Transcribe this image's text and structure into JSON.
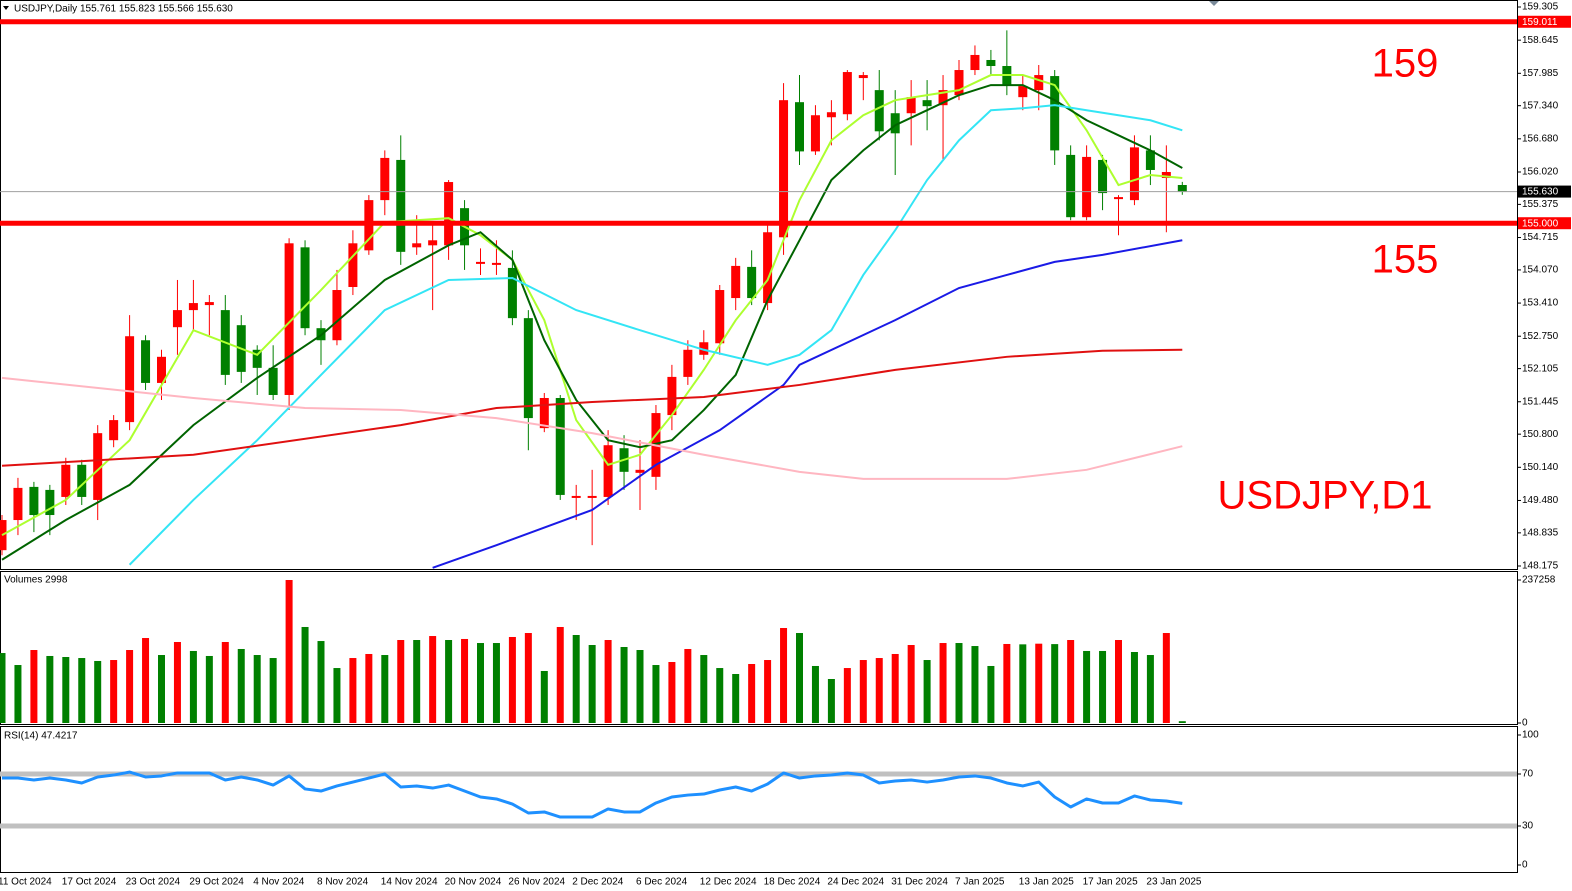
{
  "chart_data": [
    {
      "type": "candlestick",
      "title": "USDJPY,Daily 155.761 155.823 155.566 155.630",
      "categories": [
        "11 Oct 2024",
        null,
        null,
        null,
        "17 Oct 2024",
        null,
        null,
        null,
        "23 Oct 2024",
        null,
        null,
        null,
        "29 Oct 2024",
        null,
        null,
        null,
        "4 Nov 2024",
        null,
        null,
        null,
        "8 Nov 2024",
        null,
        null,
        null,
        "14 Nov 2024",
        null,
        null,
        null,
        "20 Nov 2024",
        null,
        null,
        null,
        "26 Nov 2024",
        null,
        null,
        null,
        "2 Dec 2024",
        null,
        null,
        null,
        "6 Dec 2024",
        null,
        null,
        null,
        "12 Dec 2024",
        null,
        null,
        null,
        "18 Dec 2024",
        null,
        null,
        null,
        "24 Dec 2024",
        null,
        null,
        null,
        "31 Dec 2024",
        null,
        null,
        null,
        "7 Jan 2025",
        null,
        null,
        null,
        "13 Jan 2025",
        null,
        null,
        null,
        "17 Jan 2025",
        null,
        null,
        null,
        "23 Jan 2025",
        null,
        null
      ],
      "open": [
        148.49,
        149.09,
        149.75,
        149.69,
        149.55,
        150.19,
        149.49,
        150.68,
        151.04,
        152.67,
        151.82,
        152.93,
        153.27,
        153.37,
        153.27,
        152.97,
        152.48,
        152.12,
        151.58,
        154.52,
        152.91,
        152.67,
        153.73,
        154.46,
        155.46,
        156.26,
        154.52,
        154.56,
        154.56,
        155.3,
        154.19,
        154.17,
        154.11,
        153.11,
        150.92,
        151.52,
        149.53,
        149.53,
        149.55,
        150.52,
        150.03,
        149.95,
        151.18,
        151.94,
        152.38,
        152.61,
        153.51,
        154.13,
        153.41,
        154.72,
        157.41,
        156.43,
        157.11,
        157.17,
        157.89,
        157.65,
        157.19,
        157.19,
        157.45,
        157.35,
        157.55,
        158.05,
        158.25,
        158.13,
        157.51,
        157.65,
        157.93,
        156.36,
        155.12,
        156.26,
        155.48,
        155.46,
        156.45,
        155.9,
        155.761
      ],
      "high": [
        149.19,
        149.93,
        149.85,
        149.79,
        150.33,
        150.29,
        150.98,
        151.18,
        153.17,
        152.77,
        152.48,
        153.87,
        153.87,
        153.57,
        153.57,
        153.17,
        152.57,
        152.57,
        154.7,
        154.66,
        153.07,
        154.07,
        154.86,
        155.56,
        156.45,
        156.75,
        155.16,
        154.96,
        155.86,
        155.46,
        154.5,
        154.66,
        154.46,
        153.27,
        151.62,
        151.58,
        149.79,
        150.09,
        150.88,
        150.78,
        150.68,
        151.38,
        152.18,
        152.67,
        152.87,
        153.77,
        154.31,
        154.46,
        154.96,
        157.79,
        157.95,
        157.35,
        157.45,
        158.05,
        158.01,
        158.05,
        157.65,
        157.85,
        157.85,
        157.95,
        158.25,
        158.54,
        158.45,
        158.84,
        157.95,
        158.15,
        158.05,
        156.55,
        156.55,
        156.36,
        155.56,
        156.75,
        156.75,
        156.55,
        155.823
      ],
      "low": [
        148.39,
        148.79,
        148.85,
        148.79,
        149.39,
        149.39,
        149.09,
        150.54,
        150.88,
        151.68,
        151.48,
        152.38,
        152.87,
        152.77,
        151.78,
        151.82,
        151.58,
        151.48,
        151.28,
        152.77,
        152.18,
        152.57,
        153.57,
        154.37,
        155.16,
        154.17,
        154.37,
        153.27,
        154.27,
        154.07,
        153.97,
        153.97,
        152.97,
        150.48,
        150.84,
        149.49,
        149.09,
        148.59,
        149.39,
        149.69,
        149.29,
        149.69,
        150.88,
        151.78,
        152.28,
        152.38,
        153.27,
        153.37,
        153.27,
        154.37,
        156.16,
        156.36,
        156.55,
        157.05,
        157.45,
        156.65,
        155.96,
        156.55,
        156.85,
        156.26,
        157.45,
        157.95,
        157.95,
        157.55,
        157.25,
        157.25,
        156.16,
        155.06,
        155.06,
        155.26,
        154.76,
        155.36,
        155.76,
        154.82,
        155.566
      ],
      "close": [
        149.09,
        149.73,
        149.19,
        149.19,
        150.19,
        149.55,
        150.82,
        151.08,
        152.75,
        151.82,
        152.34,
        153.27,
        153.41,
        153.43,
        151.98,
        152.04,
        152.12,
        151.58,
        154.6,
        152.91,
        152.67,
        153.67,
        154.6,
        155.46,
        156.3,
        154.43,
        154.6,
        154.66,
        155.82,
        154.56,
        154.23,
        154.21,
        153.11,
        151.12,
        151.52,
        149.59,
        149.57,
        149.57,
        150.58,
        150.05,
        150.09,
        151.22,
        151.94,
        152.48,
        152.63,
        153.67,
        154.15,
        153.51,
        154.82,
        157.45,
        156.43,
        157.15,
        157.21,
        158.01,
        157.95,
        156.83,
        156.79,
        157.51,
        157.33,
        157.65,
        158.05,
        158.35,
        158.13,
        157.75,
        157.73,
        157.95,
        156.45,
        155.12,
        156.32,
        155.6,
        155.52,
        156.51,
        156.06,
        156.02,
        155.63
      ],
      "up_color": "#ff0000",
      "down_color": "#008000",
      "overlays": [
        {
          "color": "#adff2f",
          "x": [
            0,
            4,
            8,
            12,
            16,
            20,
            24,
            28,
            30,
            32,
            34,
            36,
            38,
            40,
            42,
            44,
            46,
            48,
            50,
            52,
            54,
            56,
            58,
            60,
            62,
            64,
            66,
            68,
            70,
            72,
            74
          ],
          "values": [
            148.79,
            149.49,
            150.68,
            152.87,
            152.38,
            153.67,
            155.02,
            155.1,
            154.76,
            154.27,
            153.07,
            151.08,
            150.19,
            150.39,
            151.18,
            152.08,
            153.07,
            153.87,
            155.46,
            156.65,
            157.15,
            157.45,
            157.55,
            157.65,
            157.95,
            157.95,
            157.75,
            156.85,
            155.76,
            155.96,
            155.9
          ]
        },
        {
          "color": "#006400",
          "x": [
            0,
            4,
            8,
            12,
            16,
            20,
            24,
            28,
            30,
            32,
            34,
            36,
            38,
            40,
            42,
            44,
            46,
            48,
            50,
            52,
            54,
            56,
            58,
            60,
            62,
            64,
            66,
            68,
            70,
            72,
            74
          ],
          "values": [
            148.3,
            149.09,
            149.79,
            150.98,
            151.92,
            152.77,
            153.87,
            154.56,
            154.82,
            154.27,
            152.67,
            151.48,
            150.68,
            150.54,
            150.68,
            151.28,
            151.98,
            153.47,
            154.66,
            155.86,
            156.45,
            156.95,
            157.25,
            157.55,
            157.75,
            157.75,
            157.45,
            157.05,
            156.75,
            156.45,
            156.1
          ]
        },
        {
          "color": "#33e5f5",
          "x": [
            8,
            12,
            16,
            20,
            24,
            28,
            32,
            36,
            40,
            44,
            48,
            50,
            52,
            54,
            56,
            58,
            60,
            62,
            64,
            66,
            68,
            70,
            72,
            74
          ],
          "values": [
            148.2,
            149.49,
            150.68,
            151.98,
            153.27,
            153.87,
            153.91,
            153.27,
            152.87,
            152.48,
            152.18,
            152.38,
            152.87,
            153.97,
            154.86,
            155.86,
            156.65,
            157.25,
            157.29,
            157.35,
            157.25,
            157.15,
            157.05,
            156.85
          ]
        },
        {
          "color": "#1a1ae6",
          "x": [
            27,
            31,
            37,
            41,
            45,
            49,
            50,
            56,
            60,
            63,
            66,
            69,
            74
          ],
          "values": [
            148.14,
            148.59,
            149.29,
            150.19,
            150.88,
            151.78,
            152.18,
            153.07,
            153.71,
            153.97,
            154.23,
            154.37,
            154.66
          ]
        },
        {
          "color": "#e01010",
          "x": [
            0,
            12,
            25,
            31,
            37,
            44,
            50,
            56,
            63,
            69,
            74
          ],
          "values": [
            150.17,
            150.39,
            150.98,
            151.32,
            151.44,
            151.54,
            151.78,
            152.08,
            152.34,
            152.46,
            152.48
          ]
        },
        {
          "color": "#ffb6c1",
          "x": [
            0,
            12,
            19,
            25,
            31,
            37,
            44,
            50,
            54,
            63,
            68,
            74
          ],
          "values": [
            151.92,
            151.52,
            151.32,
            151.28,
            151.12,
            150.82,
            150.39,
            150.05,
            149.91,
            149.91,
            150.09,
            150.56
          ]
        }
      ],
      "hlines": [
        {
          "value": 159.011,
          "label": "159.011"
        },
        {
          "value": 155,
          "label": "155.000"
        }
      ],
      "hline_color": "#ff0000",
      "last_price": {
        "value": 155.63,
        "label": "155.630"
      },
      "annotations": [
        "159",
        "155",
        "USDJPY,D1"
      ],
      "ylim": [
        148.175,
        159.305
      ],
      "yticks": [
        159.305,
        158.645,
        157.985,
        {
          "value": 157.34,
          "label": "157.340"
        },
        {
          "value": 156.68,
          "label": "156.680"
        },
        {
          "value": 156.02,
          "label": "156.020"
        },
        155.375,
        154.715,
        {
          "value": 154.07,
          "label": "154.070"
        },
        {
          "value": 153.41,
          "label": "153.410"
        },
        {
          "value": 152.75,
          "label": "152.750"
        },
        152.105,
        151.445,
        {
          "value": 150.8,
          "label": "150.800"
        },
        {
          "value": 150.14,
          "label": "150.140"
        },
        {
          "value": 149.48,
          "label": "149.480"
        },
        148.835,
        148.175
      ]
    },
    {
      "type": "bar",
      "title": "Volumes 2998",
      "values": [
        116100,
        96200,
        121100,
        111200,
        109500,
        107800,
        102900,
        104500,
        121100,
        141000,
        112800,
        134400,
        119500,
        111200,
        134400,
        122800,
        112800,
        107800,
        237258,
        159300,
        136000,
        91200,
        107800,
        114500,
        112800,
        137700,
        137700,
        144300,
        137700,
        139400,
        132700,
        132700,
        142700,
        149300,
        86300,
        159300,
        146000,
        129400,
        137700,
        126100,
        121100,
        96200,
        101200,
        122800,
        112800,
        91200,
        81300,
        97900,
        104500,
        157600,
        149300,
        94600,
        73000,
        91200,
        104500,
        107800,
        114500,
        129400,
        104500,
        132700,
        132700,
        127700,
        94600,
        131100,
        130500,
        131600,
        130900,
        137700,
        119500,
        119500,
        137700,
        117800,
        112800,
        149300,
        2998
      ],
      "up_color": "#ff0000",
      "down_color": "#008000",
      "ylim": [
        0,
        237258
      ],
      "yticks": [
        0,
        237258
      ]
    },
    {
      "type": "line",
      "title": "RSI(14) 47.4217",
      "values": [
        66.9,
        66.9,
        65.4,
        66.9,
        65.4,
        63.1,
        67.7,
        69.2,
        71.5,
        67.7,
        68.5,
        70.8,
        70.8,
        70.8,
        65.4,
        67.7,
        65.4,
        61.5,
        68.5,
        58.5,
        56.9,
        60.8,
        63.8,
        66.9,
        70.0,
        60.0,
        60.8,
        59.2,
        61.5,
        56.9,
        52.3,
        50.8,
        46.9,
        40.0,
        40.8,
        36.9,
        36.9,
        36.9,
        43.1,
        40.8,
        40.8,
        47.7,
        52.3,
        53.8,
        54.6,
        57.7,
        60.0,
        56.9,
        62.3,
        70.8,
        66.9,
        68.5,
        69.2,
        70.8,
        69.2,
        63.1,
        64.6,
        65.4,
        63.8,
        65.4,
        67.7,
        68.5,
        66.9,
        63.1,
        60.8,
        63.8,
        52.3,
        44.6,
        50.8,
        47.7,
        47.7,
        53.1,
        50.0,
        49.2,
        47.4217
      ],
      "color": "#1e90ff",
      "levels": [
        30,
        70
      ],
      "level_color": "#c0c0c0",
      "ylim": [
        0,
        100
      ],
      "yticks": [
        0,
        30,
        70,
        100
      ]
    }
  ]
}
